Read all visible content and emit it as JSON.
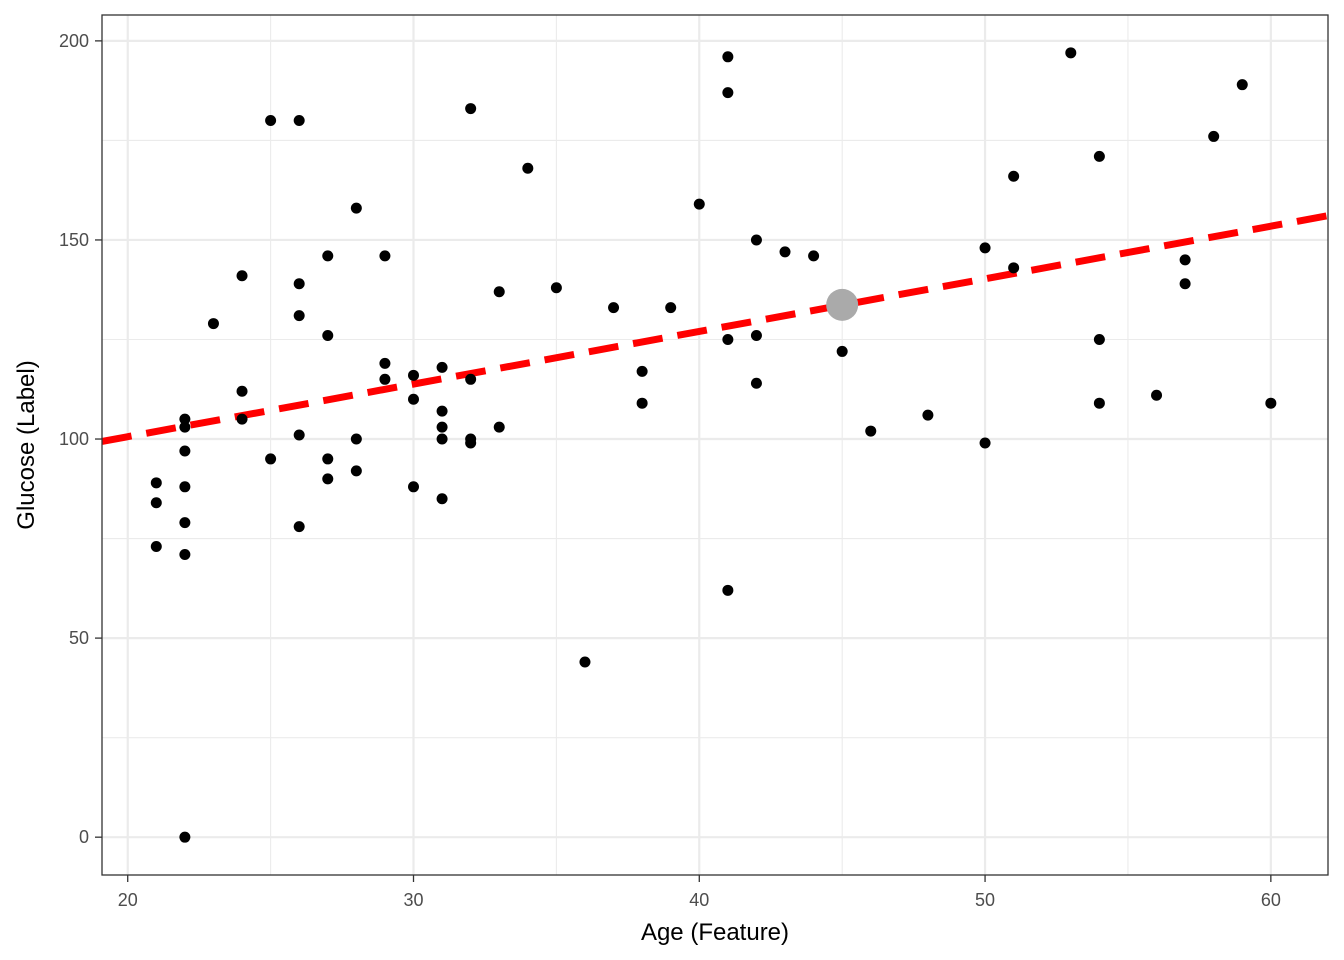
{
  "chart_data": {
    "type": "scatter",
    "title": "",
    "xlabel": "Age (Feature)",
    "ylabel": "Glucose (Label)",
    "xlim": [
      19.1,
      62.0
    ],
    "ylim": [
      -9.5,
      206.5
    ],
    "x_ticks": [
      20,
      30,
      40,
      50,
      60
    ],
    "x_tick_labels": [
      "20",
      "30",
      "40",
      "50",
      "60"
    ],
    "y_ticks": [
      0,
      50,
      100,
      150,
      200
    ],
    "y_tick_labels": [
      "0",
      "50",
      "100",
      "150",
      "200"
    ],
    "grid": true,
    "theme": "bw",
    "points": [
      {
        "x": 21,
        "y": 89
      },
      {
        "x": 21,
        "y": 84
      },
      {
        "x": 21,
        "y": 73
      },
      {
        "x": 22,
        "y": 105
      },
      {
        "x": 22,
        "y": 103
      },
      {
        "x": 22,
        "y": 97
      },
      {
        "x": 22,
        "y": 88
      },
      {
        "x": 22,
        "y": 79
      },
      {
        "x": 22,
        "y": 71
      },
      {
        "x": 22,
        "y": 0
      },
      {
        "x": 23,
        "y": 129
      },
      {
        "x": 24,
        "y": 141
      },
      {
        "x": 24,
        "y": 112
      },
      {
        "x": 24,
        "y": 105
      },
      {
        "x": 25,
        "y": 180
      },
      {
        "x": 25,
        "y": 95
      },
      {
        "x": 26,
        "y": 180
      },
      {
        "x": 26,
        "y": 139
      },
      {
        "x": 26,
        "y": 131
      },
      {
        "x": 26,
        "y": 101
      },
      {
        "x": 26,
        "y": 78
      },
      {
        "x": 27,
        "y": 146
      },
      {
        "x": 27,
        "y": 126
      },
      {
        "x": 27,
        "y": 95
      },
      {
        "x": 27,
        "y": 90
      },
      {
        "x": 28,
        "y": 158
      },
      {
        "x": 28,
        "y": 100
      },
      {
        "x": 28,
        "y": 92
      },
      {
        "x": 29,
        "y": 146
      },
      {
        "x": 29,
        "y": 119
      },
      {
        "x": 29,
        "y": 115
      },
      {
        "x": 30,
        "y": 116
      },
      {
        "x": 30,
        "y": 110
      },
      {
        "x": 30,
        "y": 88
      },
      {
        "x": 31,
        "y": 118
      },
      {
        "x": 31,
        "y": 107
      },
      {
        "x": 31,
        "y": 103
      },
      {
        "x": 31,
        "y": 100
      },
      {
        "x": 31,
        "y": 85
      },
      {
        "x": 32,
        "y": 183
      },
      {
        "x": 32,
        "y": 115
      },
      {
        "x": 32,
        "y": 100
      },
      {
        "x": 32,
        "y": 99
      },
      {
        "x": 33,
        "y": 137
      },
      {
        "x": 33,
        "y": 103
      },
      {
        "x": 34,
        "y": 168
      },
      {
        "x": 35,
        "y": 138
      },
      {
        "x": 36,
        "y": 44
      },
      {
        "x": 37,
        "y": 133
      },
      {
        "x": 38,
        "y": 117
      },
      {
        "x": 38,
        "y": 109
      },
      {
        "x": 39,
        "y": 133
      },
      {
        "x": 40,
        "y": 159
      },
      {
        "x": 41,
        "y": 196
      },
      {
        "x": 41,
        "y": 187
      },
      {
        "x": 41,
        "y": 125
      },
      {
        "x": 41,
        "y": 62
      },
      {
        "x": 42,
        "y": 150
      },
      {
        "x": 42,
        "y": 126
      },
      {
        "x": 42,
        "y": 114
      },
      {
        "x": 43,
        "y": 147
      },
      {
        "x": 44,
        "y": 146
      },
      {
        "x": 45,
        "y": 122
      },
      {
        "x": 46,
        "y": 102
      },
      {
        "x": 48,
        "y": 106
      },
      {
        "x": 50,
        "y": 148
      },
      {
        "x": 50,
        "y": 99
      },
      {
        "x": 51,
        "y": 166
      },
      {
        "x": 51,
        "y": 143
      },
      {
        "x": 53,
        "y": 197
      },
      {
        "x": 54,
        "y": 171
      },
      {
        "x": 54,
        "y": 125
      },
      {
        "x": 54,
        "y": 109
      },
      {
        "x": 56,
        "y": 111
      },
      {
        "x": 57,
        "y": 145
      },
      {
        "x": 57,
        "y": 139
      },
      {
        "x": 58,
        "y": 176
      },
      {
        "x": 59,
        "y": 189
      },
      {
        "x": 60,
        "y": 109
      }
    ],
    "highlight_point": {
      "x": 45,
      "y": 133.7,
      "color": "#aaaaaa"
    },
    "regression_line": {
      "x": [
        19.1,
        62.0
      ],
      "y": [
        99.4,
        156.1
      ],
      "color": "#ff0000",
      "style": "dashed"
    },
    "colors": {
      "points": "#000000",
      "line": "#ff0000",
      "highlight": "#aaaaaa",
      "grid": "#ebebeb",
      "panel_border": "#333333"
    }
  }
}
